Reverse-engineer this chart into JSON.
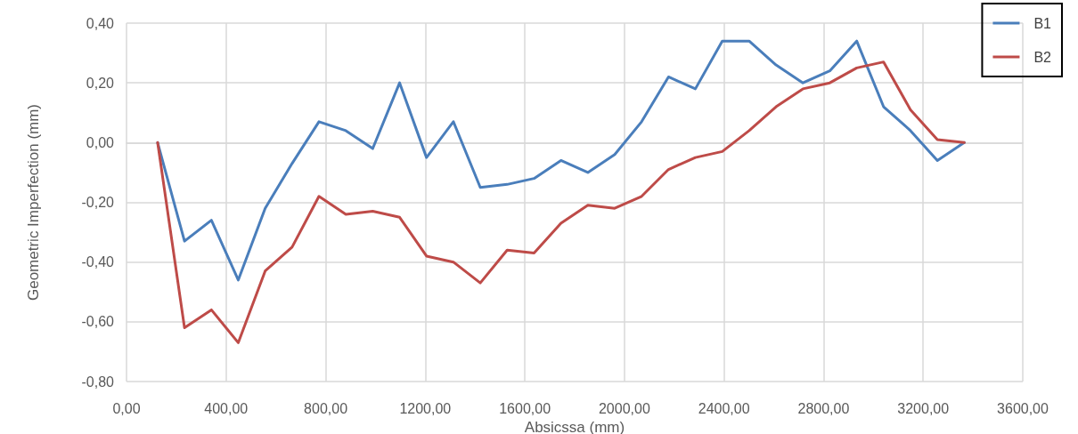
{
  "chart_data": {
    "type": "line",
    "xlabel": "Absicssa (mm)",
    "ylabel": "Geometric Imperfection (mm)",
    "x": [
      125,
      233,
      341,
      449,
      557,
      665,
      773,
      881,
      989,
      1097,
      1205,
      1313,
      1421,
      1529,
      1637,
      1745,
      1853,
      1961,
      2069,
      2177,
      2285,
      2393,
      2501,
      2609,
      2717,
      2825,
      2933,
      3041,
      3149,
      3257,
      3365
    ],
    "series": [
      {
        "name": "B1",
        "color": "#4a7ebb",
        "values": [
          0,
          -0.33,
          -0.26,
          -0.46,
          -0.22,
          -0.07,
          0.07,
          0.04,
          -0.02,
          0.2,
          -0.05,
          0.07,
          -0.15,
          -0.14,
          -0.12,
          -0.06,
          -0.1,
          -0.04,
          0.07,
          0.22,
          0.18,
          0.34,
          0.34,
          0.26,
          0.2,
          0.24,
          0.34,
          0.12,
          0.04,
          -0.06,
          0
        ]
      },
      {
        "name": "B2",
        "color": "#be4b48",
        "values": [
          0,
          -0.62,
          -0.56,
          -0.67,
          -0.43,
          -0.35,
          -0.18,
          -0.24,
          -0.23,
          -0.25,
          -0.38,
          -0.4,
          -0.47,
          -0.36,
          -0.37,
          -0.27,
          -0.21,
          -0.22,
          -0.18,
          -0.09,
          -0.05,
          -0.03,
          0.04,
          0.12,
          0.18,
          0.2,
          0.25,
          0.27,
          0.11,
          0.01,
          0
        ]
      }
    ],
    "xlim": [
      0,
      3600
    ],
    "xticks": [
      {
        "value": 0,
        "label": "0,00"
      },
      {
        "value": 400,
        "label": "400,00"
      },
      {
        "value": 800,
        "label": "800,00"
      },
      {
        "value": 1200,
        "label": "1200,00"
      },
      {
        "value": 1600,
        "label": "1600,00"
      },
      {
        "value": 2000,
        "label": "2000,00"
      },
      {
        "value": 2400,
        "label": "2400,00"
      },
      {
        "value": 2800,
        "label": "2800,00"
      },
      {
        "value": 3200,
        "label": "3200,00"
      },
      {
        "value": 3600,
        "label": "3600,00"
      }
    ],
    "ylim": [
      -0.8,
      0.4
    ],
    "yticks": [
      {
        "value": -0.8,
        "label": "-0,80"
      },
      {
        "value": -0.6,
        "label": "-0,60"
      },
      {
        "value": -0.4,
        "label": "-0,40"
      },
      {
        "value": -0.2,
        "label": "-0,20"
      },
      {
        "value": 0,
        "label": "0,00"
      },
      {
        "value": 0.2,
        "label": "0,20"
      },
      {
        "value": 0.4,
        "label": "0,40"
      }
    ],
    "grid": true,
    "legend": "top right",
    "marker": "none",
    "line_style": "solid"
  }
}
